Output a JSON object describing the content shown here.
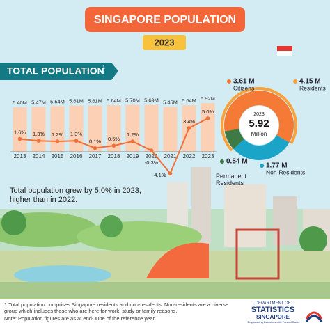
{
  "title": "SINGAPORE POPULATION",
  "year": "2023",
  "chart_data": [
    {
      "type": "bar",
      "title": "TOTAL POPULATION",
      "footnote_marker": "1",
      "categories": [
        "2013",
        "2014",
        "2015",
        "2016",
        "2017",
        "2018",
        "2019",
        "2020",
        "2021",
        "2022",
        "2023"
      ],
      "values": [
        5.4,
        5.47,
        5.54,
        5.61,
        5.61,
        5.64,
        5.7,
        5.69,
        5.45,
        5.64,
        5.92
      ],
      "value_labels": [
        "5.40M",
        "5.47M",
        "5.54M",
        "5.61M",
        "5.61M",
        "5.64M",
        "5.70M",
        "5.69M",
        "5.45M",
        "5.64M",
        "5.92M"
      ],
      "color": "#fbd0b4",
      "ylim": [
        0,
        6
      ],
      "series": [
        {
          "type": "line",
          "axis": "y2",
          "color": "#f0703a",
          "values": [
            1.6,
            1.3,
            1.2,
            1.3,
            0.1,
            0.5,
            1.2,
            -0.3,
            -4.1,
            3.4,
            5.0
          ],
          "value_labels": [
            "1.6%",
            "1.3%",
            "1.2%",
            "1.3%",
            "0.1%",
            "0.5%",
            "1.2%",
            "-0.3%",
            "-4.1%",
            "3.4%",
            "5.0%"
          ]
        }
      ],
      "y2lim": [
        -5,
        5
      ],
      "annotation": "Total population grew by 5.0% in 2023, higher than in 2022."
    },
    {
      "type": "pie",
      "categories": [
        "Citizens",
        "Non-Residents",
        "Permanent Residents"
      ],
      "values": [
        3.61,
        1.77,
        0.54
      ],
      "value_labels": [
        "3.61 M",
        "1.77 M",
        "0.54 M"
      ],
      "colors": [
        "#f47a36",
        "#1aa4c8",
        "#3d7a45"
      ],
      "residents": {
        "label": "Residents",
        "value": 4.15,
        "value_label": "4.15 M",
        "color": "#f8a23b"
      },
      "center": {
        "year": "2023",
        "value": 5.92,
        "unit": "Million"
      }
    }
  ],
  "footer": {
    "footnote": "1 Total population comprises Singapore residents and non-residents. Non-residents are a diverse group which includes those who are here for work, study or family reasons.",
    "note": "Note: Population figures are as at end-June of the reference year.",
    "logo_top": "DEPARTMENT OF",
    "logo_main": "STATISTICS",
    "logo_sub": "SINGAPORE",
    "logo_tagline": "Empowering Decisions with Trusted Data"
  }
}
